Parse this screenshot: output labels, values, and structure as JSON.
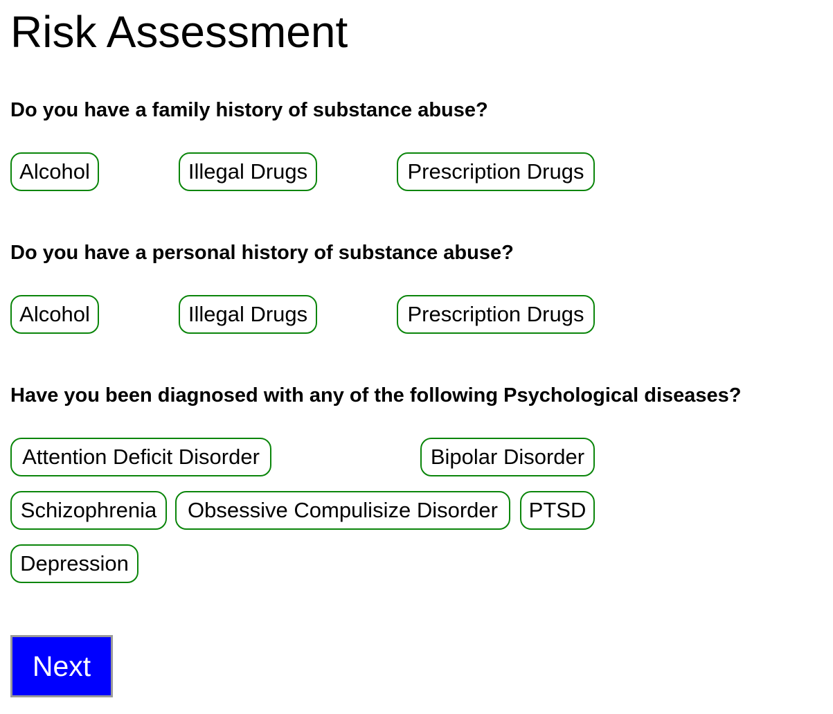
{
  "page": {
    "title": "Risk Assessment"
  },
  "questions": [
    {
      "text": "Do you have a family history of substance abuse?",
      "options": [
        "Alcohol",
        "Illegal Drugs",
        "Prescription Drugs"
      ]
    },
    {
      "text": "Do you have a personal history of substance abuse?",
      "options": [
        "Alcohol",
        "Illegal Drugs",
        "Prescription Drugs"
      ]
    },
    {
      "text": "Have you been diagnosed with any of the following Psychological diseases?",
      "options": [
        "Attention Deficit Disorder",
        "Bipolar Disorder",
        "Schizophrenia",
        "Obsessive Compulisize Disorder",
        "PTSD",
        "Depression"
      ]
    }
  ],
  "actions": {
    "next_label": "Next"
  },
  "colors": {
    "chip_border": "#0a850a",
    "next_background": "#0000ff",
    "next_text": "#ffffff"
  }
}
